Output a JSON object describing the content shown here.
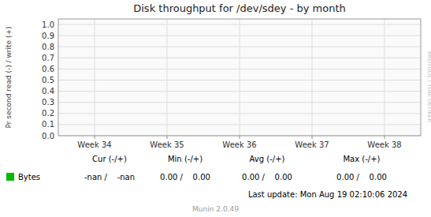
{
  "chart_data": {
    "type": "line",
    "title": "Disk throughput for /dev/sdey - by month",
    "y_label": "Pr second read (-) / write (+)",
    "categories": [
      "Week 34",
      "Week 35",
      "Week 36",
      "Week 37",
      "Week 38"
    ],
    "series": [
      {
        "name": "Bytes",
        "color": "#00bb00",
        "values": [
          null,
          null,
          null,
          null,
          null
        ]
      }
    ],
    "ylim": [
      0.0,
      1.05
    ],
    "yticks": [
      {
        "value": 0,
        "label": "0.0"
      },
      0.1,
      0.2,
      0.3,
      0.4,
      0.5,
      0.6,
      0.7,
      0.8,
      0.9,
      {
        "value": 1,
        "label": "1.0"
      }
    ],
    "grid": true,
    "annotations": [
      "RRDTOOL / TOBI OETIKER",
      "Cur (-/+)",
      "Min (-/+)",
      "Avg (-/+)",
      "Max (-/+)",
      "-nan /    -nan",
      "0.00 /    0.00",
      "0.00 /    0.00",
      "0.00 /    0.00",
      "Last update: Mon Aug 19 02:10:06 2024",
      "Munin 2.0.49"
    ]
  }
}
